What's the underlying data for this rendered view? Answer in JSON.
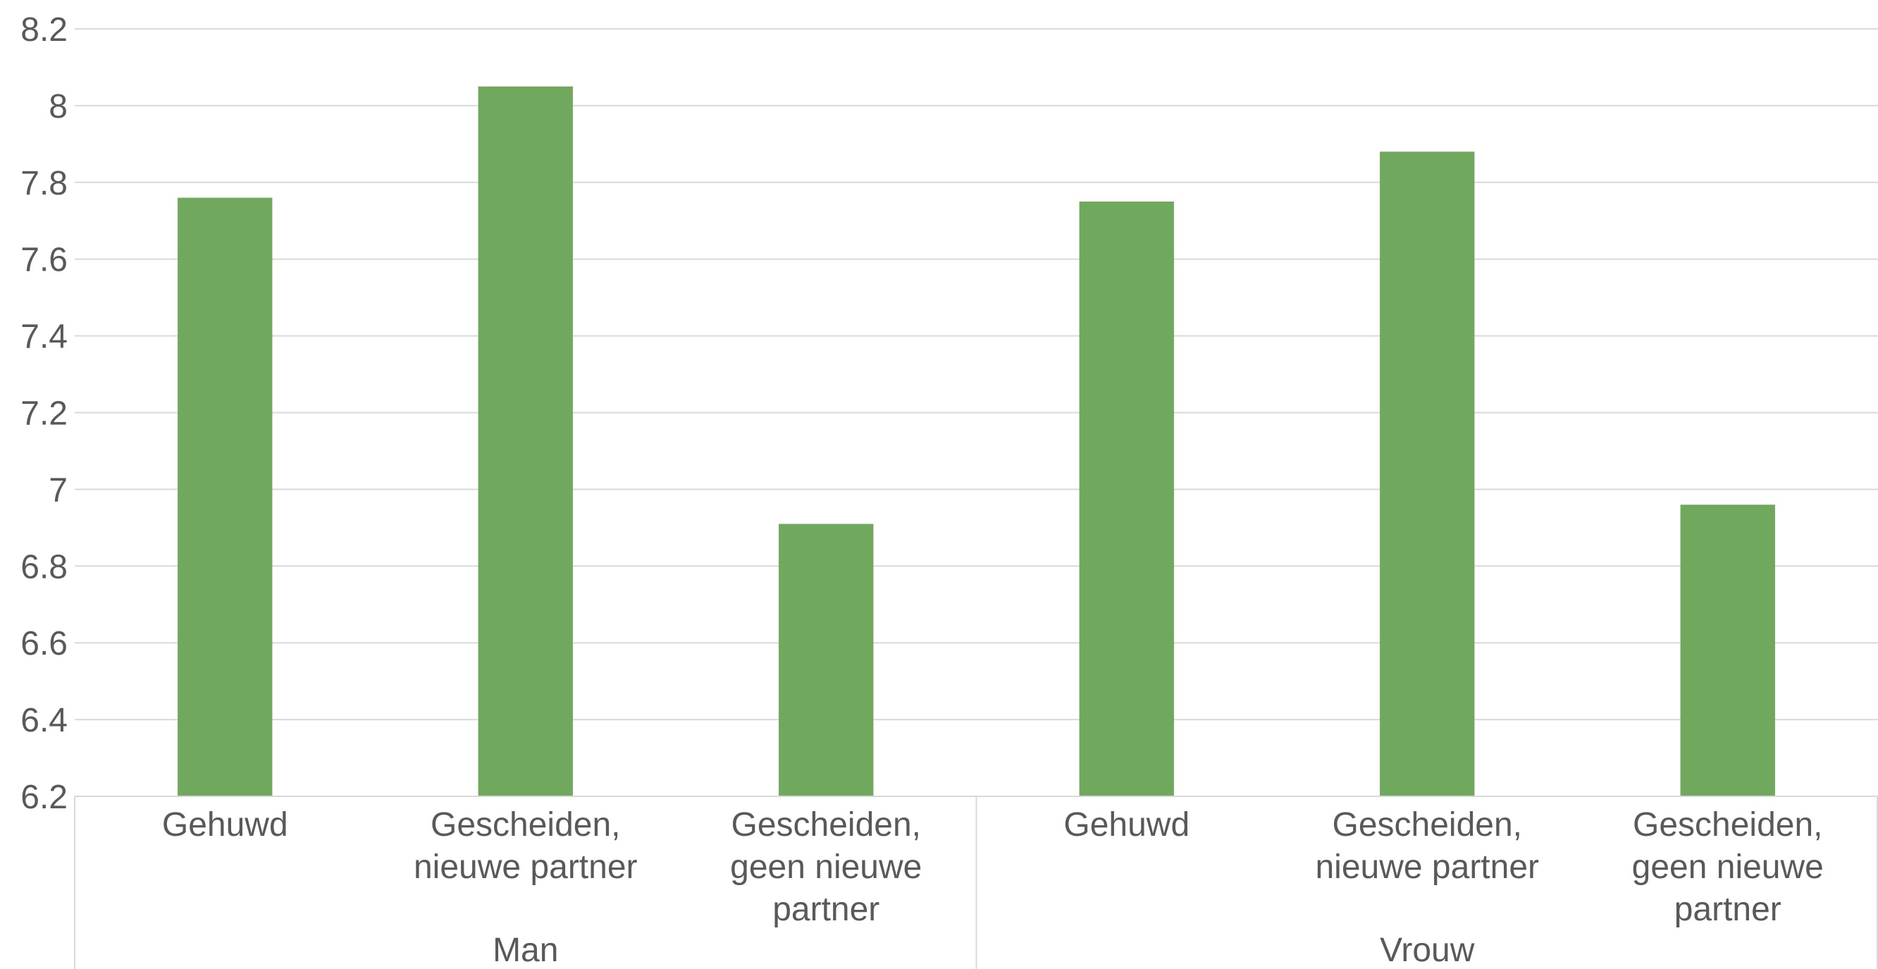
{
  "chart_data": {
    "type": "bar",
    "title": "",
    "xlabel": "",
    "ylabel": "",
    "ylim": [
      6.2,
      8.2
    ],
    "yticks": [
      "6.2",
      "6.4",
      "6.6",
      "6.8",
      "7",
      "7.2",
      "7.4",
      "7.6",
      "7.8",
      "8",
      "8.2"
    ],
    "grid": true,
    "legend": "none",
    "groups": [
      {
        "label": "Man",
        "categories": [
          {
            "lines": [
              "Gehuwd"
            ]
          },
          {
            "lines": [
              "Gescheiden,",
              "nieuwe partner"
            ]
          },
          {
            "lines": [
              "Gescheiden,",
              "geen nieuwe",
              "partner"
            ]
          }
        ]
      },
      {
        "label": "Vrouw",
        "categories": [
          {
            "lines": [
              "Gehuwd"
            ]
          },
          {
            "lines": [
              "Gescheiden,",
              "nieuwe partner"
            ]
          },
          {
            "lines": [
              "Gescheiden,",
              "geen nieuwe",
              "partner"
            ]
          }
        ]
      }
    ],
    "values": [
      7.76,
      8.05,
      6.91,
      7.75,
      7.88,
      6.96
    ],
    "colors": {
      "bar": "#70a85e",
      "grid": "#d9d9d9",
      "axis": "#d9d9d9",
      "text": "#595959"
    }
  }
}
